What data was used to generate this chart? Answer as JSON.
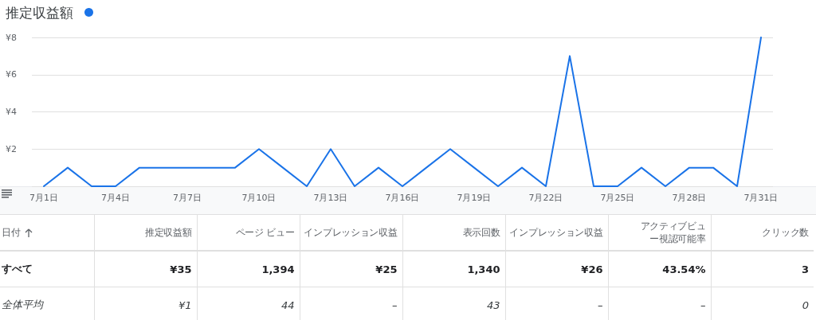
{
  "chart_data": [
    {
      "type": "line",
      "categories": [
        "7月1日",
        null,
        null,
        "7月4日",
        null,
        null,
        "7月7日",
        null,
        null,
        "7月10日",
        null,
        null,
        "7月13日",
        null,
        null,
        "7月16日",
        null,
        null,
        "7月19日",
        null,
        null,
        "7月22日",
        null,
        null,
        "7月25日",
        null,
        null,
        "7月28日",
        null,
        null,
        "7月31日"
      ],
      "series": [
        {
          "name": "推定収益額",
          "color": "#1a73e8",
          "values": [
            0,
            1,
            0,
            0,
            1,
            1,
            1,
            1,
            1,
            2,
            1,
            0,
            2,
            0,
            1,
            0,
            1,
            2,
            1,
            0,
            1,
            0,
            7,
            0,
            0,
            1,
            0,
            1,
            1,
            0,
            8
          ]
        }
      ],
      "ylim": [
        0,
        8
      ],
      "yticks": [
        {
          "value": 0,
          "label": null
        },
        {
          "value": 2,
          "label": "¥2"
        },
        {
          "value": 4,
          "label": "¥4"
        },
        {
          "value": 6,
          "label": "¥6"
        },
        {
          "value": 8,
          "label": "¥8"
        }
      ],
      "grid": "y",
      "legend": "top left",
      "marker": "none",
      "line_style": "solid"
    },
    {
      "type": "other",
      "categories": [
        "日付",
        "推定収益額",
        "ページ ビュー",
        "インプレッション収益",
        "表示回数",
        "インプレッション収益",
        "アクティブビュー視認可能率",
        "クリック数"
      ],
      "cell_labels": [
        [
          "すべて",
          "¥35",
          "1,394",
          "¥25",
          "1,340",
          "¥26",
          "43.54%",
          "3"
        ],
        [
          "全体平均",
          "¥1",
          "44",
          "–",
          "43",
          "–",
          "–",
          "0"
        ]
      ]
    }
  ]
}
